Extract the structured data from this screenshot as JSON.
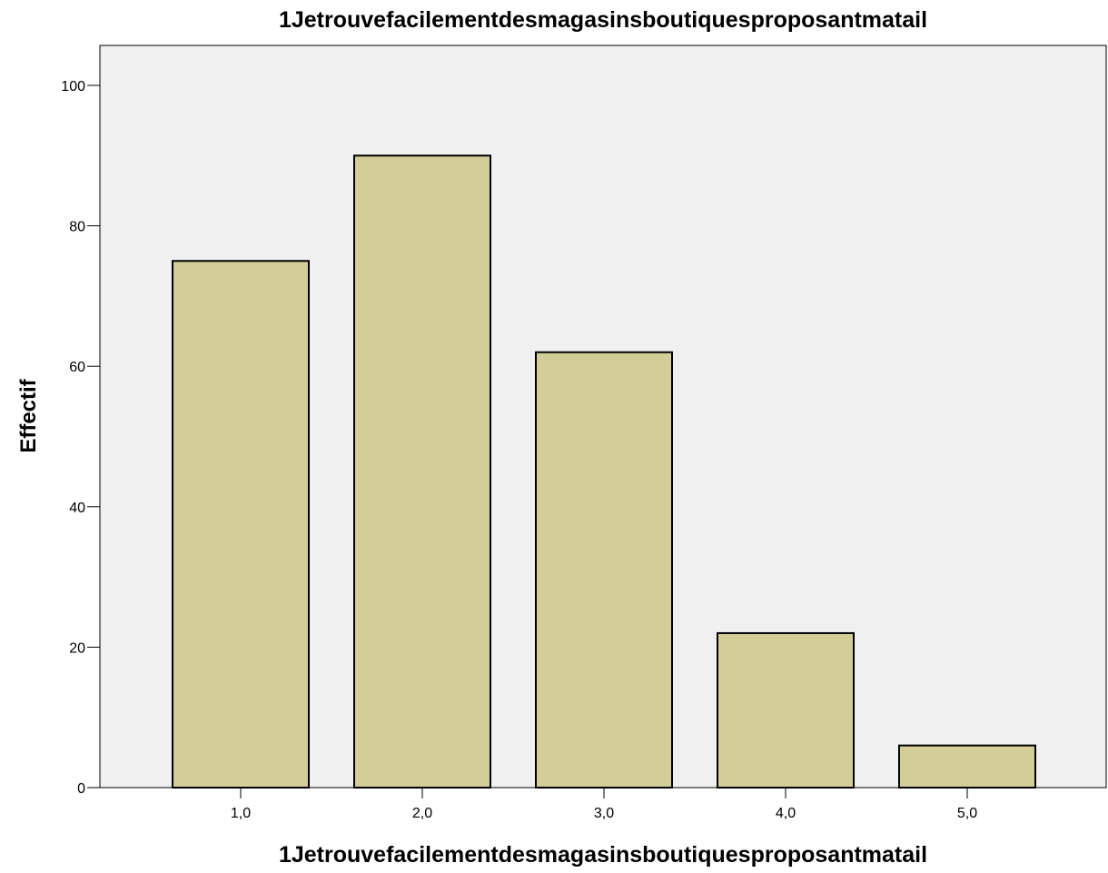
{
  "chart_data": {
    "type": "bar",
    "title": "1Jetrouvefacilementdesmagasinsboutiquesproposantmatail",
    "xlabel": "1Jetrouvefacilementdesmagasinsboutiquesproposantmatail",
    "ylabel": "Effectif",
    "categories": [
      "1,0",
      "2,0",
      "3,0",
      "4,0",
      "5,0"
    ],
    "values": [
      75,
      90,
      62,
      22,
      6
    ],
    "ylim": [
      0,
      100
    ],
    "yticks": [
      "0",
      "20",
      "40",
      "60",
      "80",
      "100"
    ],
    "grid": false,
    "colors": {
      "bar_fill": "#d3cd97",
      "bar_stroke": "#000000",
      "plot_background": "#f0f0f0"
    }
  }
}
